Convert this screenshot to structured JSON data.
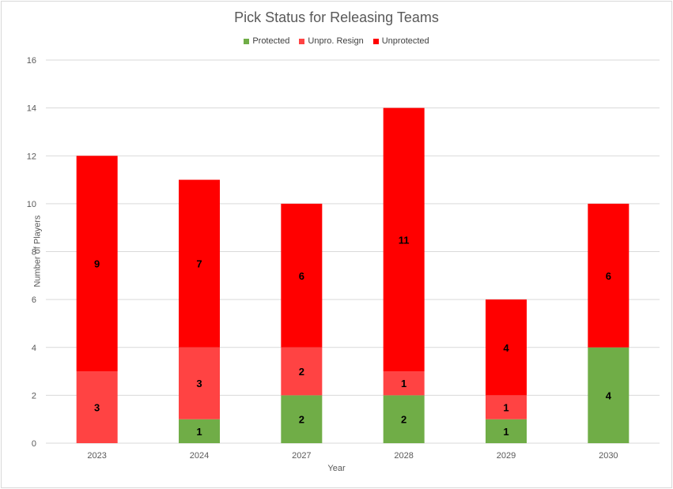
{
  "chart_data": {
    "type": "bar",
    "stacked": true,
    "title": "Pick Status for Releasing Teams",
    "xlabel": "Year",
    "ylabel": "Number of Players",
    "categories": [
      "2023",
      "2024",
      "2027",
      "2028",
      "2029",
      "2030"
    ],
    "ylim": [
      0,
      16
    ],
    "yticks": [
      0,
      2,
      4,
      6,
      8,
      10,
      12,
      14,
      16
    ],
    "grid": true,
    "legend_position": "top",
    "series": [
      {
        "name": "Protected",
        "color": "#70ad47",
        "values": [
          0,
          1,
          2,
          2,
          1,
          4
        ]
      },
      {
        "name": "Unpro. Resign",
        "color": "#ff4343",
        "values": [
          3,
          3,
          2,
          1,
          1,
          0
        ]
      },
      {
        "name": "Unprotected",
        "color": "#ff0000",
        "values": [
          9,
          7,
          6,
          11,
          4,
          6
        ]
      }
    ]
  }
}
